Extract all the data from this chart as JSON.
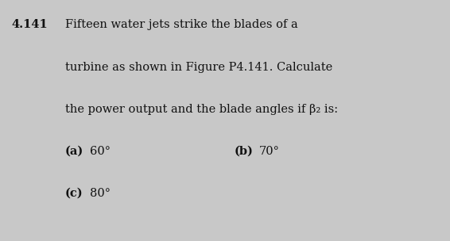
{
  "problem_number": "4.141",
  "line1": "Fifteen water jets strike the blades of a",
  "line2": "turbine as shown in Figure P4.141. Calculate",
  "line3": "the power output and the blade angles if β₂ is:",
  "part_a_label": "(a)",
  "part_a_value": "60°",
  "part_b_label": "(b)",
  "part_b_value": "70°",
  "part_c_label": "(c)",
  "part_c_value": "80°",
  "background_color": "#c8c8c8",
  "text_color": "#111111",
  "font_size": 10.5
}
